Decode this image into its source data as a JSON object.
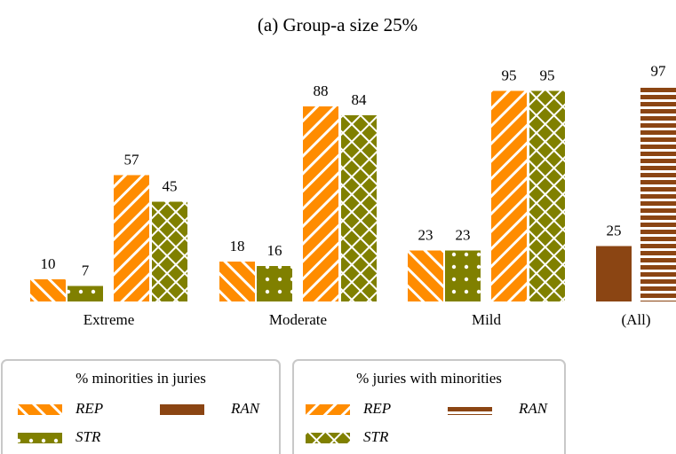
{
  "chart_data": {
    "type": "bar",
    "title": "(a) Group-a size 25%",
    "categories": [
      "Extreme",
      "Moderate",
      "Mild",
      "(All)"
    ],
    "ylim": [
      0,
      100
    ],
    "series_groups": [
      {
        "title": "% minorities in juries",
        "series": [
          {
            "name": "REP",
            "color": "#ff8c00",
            "hatch": "\\",
            "values": [
              10,
              18,
              23,
              null
            ]
          },
          {
            "name": "STR",
            "color": "#808000",
            "hatch": "dots",
            "values": [
              7,
              16,
              23,
              null
            ]
          },
          {
            "name": "RAN",
            "color": "#8b4513",
            "values": [
              null,
              null,
              null,
              25
            ]
          }
        ]
      },
      {
        "title": "% juries with minorities",
        "series": [
          {
            "name": "REP",
            "color": "#ff8c00",
            "hatch": "/",
            "values": [
              57,
              88,
              95,
              null
            ]
          },
          {
            "name": "STR",
            "color": "#808000",
            "hatch": "x",
            "values": [
              45,
              84,
              95,
              null
            ]
          },
          {
            "name": "RAN",
            "color": "#8b4513",
            "hatch": "-",
            "values": [
              null,
              null,
              null,
              97
            ]
          }
        ]
      }
    ]
  }
}
